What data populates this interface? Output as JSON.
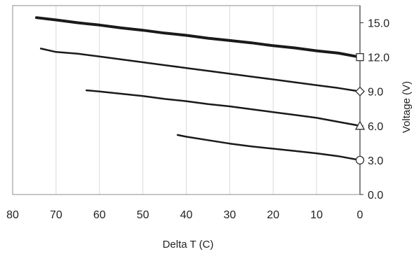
{
  "chart_data": {
    "type": "line",
    "xlabel": "Delta T (C)",
    "ylabel": "Voltage (V)",
    "x_reversed": true,
    "xlim": [
      80,
      0
    ],
    "ylim": [
      0,
      16.5
    ],
    "x_ticks": [
      80,
      70,
      60,
      50,
      40,
      30,
      20,
      10,
      0
    ],
    "x_tick_labels": [
      "80",
      "70",
      "60",
      "50",
      "40",
      "30",
      "20",
      "10",
      "0"
    ],
    "y_ticks": [
      0,
      3,
      6,
      9,
      12,
      15
    ],
    "y_tick_labels": [
      "0.0",
      "3.0",
      "6.0",
      "9.0",
      "12.0",
      "15.0"
    ],
    "y_axis_side": "right",
    "grid": "vertical",
    "legend": "none",
    "series": [
      {
        "marker": "square",
        "color": "#1a1a1a",
        "x": [
          74.5,
          70,
          65,
          60,
          55,
          50,
          45,
          40,
          35,
          30,
          25,
          20,
          15,
          10,
          5,
          0
        ],
        "y": [
          15.45,
          15.25,
          15.0,
          14.8,
          14.55,
          14.35,
          14.1,
          13.9,
          13.65,
          13.45,
          13.25,
          13.0,
          12.8,
          12.55,
          12.35,
          12.0
        ]
      },
      {
        "marker": "diamond",
        "color": "#1a1a1a",
        "x": [
          73.5,
          70,
          65,
          60,
          55,
          50,
          45,
          40,
          35,
          30,
          25,
          20,
          15,
          10,
          5,
          0
        ],
        "y": [
          12.75,
          12.45,
          12.3,
          12.05,
          11.8,
          11.55,
          11.3,
          11.05,
          10.8,
          10.55,
          10.3,
          10.05,
          9.8,
          9.55,
          9.3,
          9.0
        ]
      },
      {
        "marker": "triangle",
        "color": "#1a1a1a",
        "x": [
          63,
          60,
          55,
          50,
          45,
          40,
          35,
          30,
          25,
          20,
          15,
          10,
          5,
          0
        ],
        "y": [
          9.1,
          9.0,
          8.8,
          8.6,
          8.35,
          8.15,
          7.9,
          7.7,
          7.45,
          7.2,
          6.95,
          6.7,
          6.35,
          6.0
        ]
      },
      {
        "marker": "circle",
        "color": "#1a1a1a",
        "x": [
          42,
          40,
          35,
          30,
          25,
          20,
          15,
          10,
          5,
          0
        ],
        "y": [
          5.2,
          5.05,
          4.75,
          4.45,
          4.2,
          4.0,
          3.8,
          3.6,
          3.35,
          3.0
        ]
      }
    ]
  }
}
